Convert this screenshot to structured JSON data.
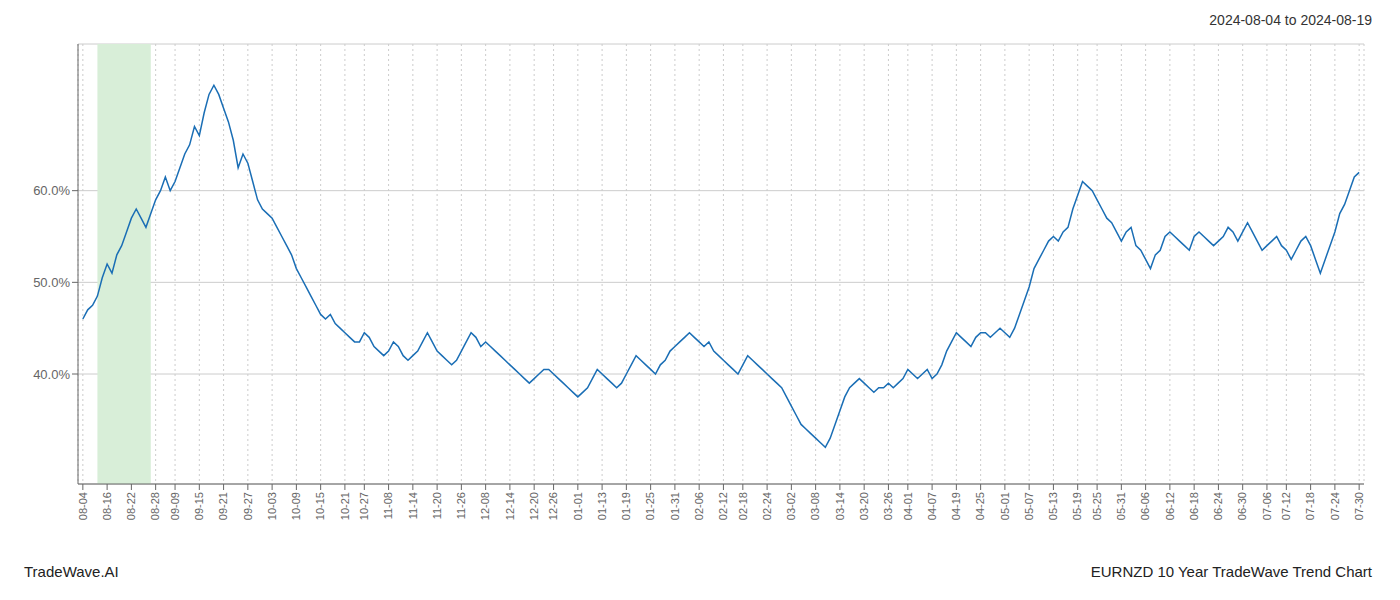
{
  "chart_data": {
    "type": "line",
    "title": "2024-08-04 to 2024-08-19",
    "annotations": [
      "TradeWave.AI",
      "EURNZD 10 Year TradeWave Trend Chart"
    ],
    "color": "#1a6eb5",
    "grid": true,
    "span": {
      "x": [
        3,
        14
      ],
      "color": "#d8eed8"
    },
    "xlim": [
      -1,
      264
    ],
    "ylim": [
      28,
      76
    ],
    "yticks": [
      {
        "value": 40.0,
        "label": "40.0%"
      },
      {
        "value": 50.0,
        "label": "50.0%"
      },
      {
        "value": 60.0,
        "label": "60.0%"
      }
    ],
    "categories": [
      "08-04",
      null,
      null,
      null,
      null,
      "08-16",
      null,
      null,
      null,
      null,
      "08-22",
      null,
      null,
      null,
      null,
      "08-28",
      null,
      null,
      null,
      "09-09",
      null,
      null,
      null,
      null,
      "09-15",
      null,
      null,
      null,
      null,
      "09-21",
      null,
      null,
      null,
      null,
      "09-27",
      null,
      null,
      null,
      null,
      "10-03",
      null,
      null,
      null,
      null,
      "10-09",
      null,
      null,
      null,
      null,
      "10-15",
      null,
      null,
      null,
      null,
      "10-21",
      null,
      null,
      null,
      "10-27",
      null,
      null,
      null,
      null,
      "11-08",
      null,
      null,
      null,
      null,
      "11-14",
      null,
      null,
      null,
      null,
      "11-20",
      null,
      null,
      null,
      null,
      "11-26",
      null,
      null,
      null,
      null,
      "12-08",
      null,
      null,
      null,
      null,
      "12-14",
      null,
      null,
      null,
      null,
      "12-20",
      null,
      null,
      null,
      "12-26",
      null,
      null,
      null,
      null,
      "01-01",
      null,
      null,
      null,
      null,
      "01-13",
      null,
      null,
      null,
      null,
      "01-19",
      null,
      null,
      null,
      null,
      "01-25",
      null,
      null,
      null,
      null,
      "01-31",
      null,
      null,
      null,
      null,
      "02-06",
      null,
      null,
      null,
      null,
      "02-12",
      null,
      null,
      null,
      "02-18",
      null,
      null,
      null,
      null,
      "02-24",
      null,
      null,
      null,
      null,
      "03-02",
      null,
      null,
      null,
      null,
      "03-08",
      null,
      null,
      null,
      null,
      "03-14",
      null,
      null,
      null,
      null,
      "03-20",
      null,
      null,
      null,
      null,
      "03-26",
      null,
      null,
      null,
      "04-01",
      null,
      null,
      null,
      null,
      "04-07",
      null,
      null,
      null,
      null,
      "04-19",
      null,
      null,
      null,
      null,
      "04-25",
      null,
      null,
      null,
      null,
      "05-01",
      null,
      null,
      null,
      null,
      "05-07",
      null,
      null,
      null,
      null,
      "05-13",
      null,
      null,
      null,
      null,
      "05-19",
      null,
      null,
      null,
      "05-25",
      null,
      null,
      null,
      null,
      "05-31",
      null,
      null,
      null,
      null,
      "06-06",
      null,
      null,
      null,
      null,
      "06-12",
      null,
      null,
      null,
      null,
      "06-18",
      null,
      null,
      null,
      null,
      "06-24",
      null,
      null,
      null,
      null,
      "06-30",
      null,
      null,
      null,
      null,
      "07-06",
      null,
      null,
      null,
      "07-12",
      null,
      null,
      null,
      null,
      "07-18",
      null,
      null,
      null,
      null,
      "07-24",
      null,
      null,
      null,
      null,
      "07-30"
    ],
    "values": [
      46.0,
      47.0,
      47.5,
      48.5,
      50.5,
      52.0,
      51.0,
      53.0,
      54.0,
      55.5,
      57.0,
      58.0,
      57.0,
      56.0,
      57.5,
      59.0,
      60.0,
      61.5,
      60.0,
      61.0,
      62.5,
      64.0,
      65.0,
      67.0,
      66.0,
      68.5,
      70.5,
      71.5,
      70.5,
      69.0,
      67.5,
      65.5,
      62.5,
      64.0,
      63.0,
      61.0,
      59.0,
      58.0,
      57.5,
      57.0,
      56.0,
      55.0,
      54.0,
      53.0,
      51.5,
      50.5,
      49.5,
      48.5,
      47.5,
      46.5,
      46.0,
      46.5,
      45.5,
      45.0,
      44.5,
      44.0,
      43.5,
      43.5,
      44.5,
      44.0,
      43.0,
      42.5,
      42.0,
      42.5,
      43.5,
      43.0,
      42.0,
      41.5,
      42.0,
      42.5,
      43.5,
      44.5,
      43.5,
      42.5,
      42.0,
      41.5,
      41.0,
      41.5,
      42.5,
      43.5,
      44.5,
      44.0,
      43.0,
      43.5,
      43.0,
      42.5,
      42.0,
      41.5,
      41.0,
      40.5,
      40.0,
      39.5,
      39.0,
      39.5,
      40.0,
      40.5,
      40.5,
      40.0,
      39.5,
      39.0,
      38.5,
      38.0,
      37.5,
      38.0,
      38.5,
      39.5,
      40.5,
      40.0,
      39.5,
      39.0,
      38.5,
      39.0,
      40.0,
      41.0,
      42.0,
      41.5,
      41.0,
      40.5,
      40.0,
      41.0,
      41.5,
      42.5,
      43.0,
      43.5,
      44.0,
      44.5,
      44.0,
      43.5,
      43.0,
      43.5,
      42.5,
      42.0,
      41.5,
      41.0,
      40.5,
      40.0,
      41.0,
      42.0,
      41.5,
      41.0,
      40.5,
      40.0,
      39.5,
      39.0,
      38.5,
      37.5,
      36.5,
      35.5,
      34.5,
      34.0,
      33.5,
      33.0,
      32.5,
      32.0,
      33.0,
      34.5,
      36.0,
      37.5,
      38.5,
      39.0,
      39.5,
      39.0,
      38.5,
      38.0,
      38.5,
      38.5,
      39.0,
      38.5,
      39.0,
      39.5,
      40.5,
      40.0,
      39.5,
      40.0,
      40.5,
      39.5,
      40.0,
      41.0,
      42.5,
      43.5,
      44.5,
      44.0,
      43.5,
      43.0,
      44.0,
      44.5,
      44.5,
      44.0,
      44.5,
      45.0,
      44.5,
      44.0,
      45.0,
      46.5,
      48.0,
      49.5,
      51.5,
      52.5,
      53.5,
      54.5,
      55.0,
      54.5,
      55.5,
      56.0,
      58.0,
      59.5,
      61.0,
      60.5,
      60.0,
      59.0,
      58.0,
      57.0,
      56.5,
      55.5,
      54.5,
      55.5,
      56.0,
      54.0,
      53.5,
      52.5,
      51.5,
      53.0,
      53.5,
      55.0,
      55.5,
      55.0,
      54.5,
      54.0,
      53.5,
      55.0,
      55.5,
      55.0,
      54.5,
      54.0,
      54.5,
      55.0,
      56.0,
      55.5,
      54.5,
      55.5,
      56.5,
      55.5,
      54.5,
      53.5,
      54.0,
      54.5,
      55.0,
      54.0,
      53.5,
      52.5,
      53.5,
      54.5,
      55.0,
      54.0,
      52.5,
      51.0,
      52.5,
      54.0,
      55.5,
      57.5,
      58.5,
      60.0,
      61.5,
      62.0
    ]
  }
}
